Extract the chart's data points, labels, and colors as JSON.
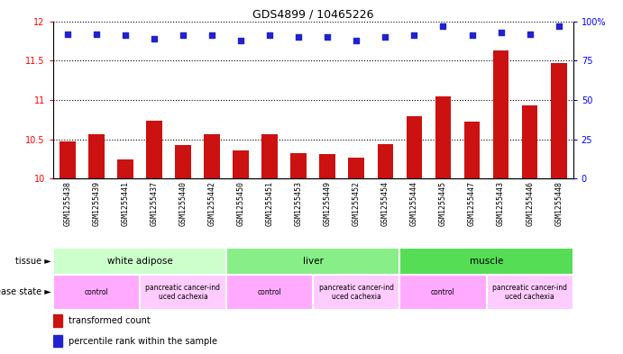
{
  "title": "GDS4899 / 10465226",
  "samples": [
    "GSM1255438",
    "GSM1255439",
    "GSM1255441",
    "GSM1255437",
    "GSM1255440",
    "GSM1255442",
    "GSM1255450",
    "GSM1255451",
    "GSM1255453",
    "GSM1255449",
    "GSM1255452",
    "GSM1255454",
    "GSM1255444",
    "GSM1255445",
    "GSM1255447",
    "GSM1255443",
    "GSM1255446",
    "GSM1255448"
  ],
  "transformed_count": [
    10.47,
    10.56,
    10.25,
    10.74,
    10.43,
    10.57,
    10.36,
    10.56,
    10.33,
    10.31,
    10.27,
    10.44,
    10.8,
    11.05,
    10.73,
    11.63,
    10.93,
    11.47
  ],
  "percentile_rank": [
    92,
    92,
    91,
    89,
    91,
    91,
    88,
    91,
    90,
    90,
    88,
    90,
    91,
    97,
    91,
    93,
    92,
    97
  ],
  "ylim_left": [
    10,
    12
  ],
  "yticks_left": [
    10,
    10.5,
    11,
    11.5,
    12
  ],
  "ylim_right": [
    0,
    100
  ],
  "yticks_right": [
    0,
    25,
    50,
    75,
    100
  ],
  "bar_color": "#cc1111",
  "dot_color": "#2222cc",
  "tissue_groups": [
    {
      "label": "white adipose",
      "start": 0,
      "end": 6,
      "color": "#ccffcc"
    },
    {
      "label": "liver",
      "start": 6,
      "end": 12,
      "color": "#88ee88"
    },
    {
      "label": "muscle",
      "start": 12,
      "end": 18,
      "color": "#55dd55"
    }
  ],
  "disease_groups": [
    {
      "label": "control",
      "start": 0,
      "end": 3,
      "color": "#ffaaff"
    },
    {
      "label": "pancreatic cancer-ind\nuced cachexia",
      "start": 3,
      "end": 6,
      "color": "#ffccff"
    },
    {
      "label": "control",
      "start": 6,
      "end": 9,
      "color": "#ffaaff"
    },
    {
      "label": "pancreatic cancer-ind\nuced cachexia",
      "start": 9,
      "end": 12,
      "color": "#ffccff"
    },
    {
      "label": "control",
      "start": 12,
      "end": 15,
      "color": "#ffaaff"
    },
    {
      "label": "pancreatic cancer-ind\nuced cachexia",
      "start": 15,
      "end": 18,
      "color": "#ffccff"
    }
  ],
  "xticklabel_bg": "#d0d0d0",
  "fig_bg": "#ffffff",
  "title_fontsize": 9,
  "axis_fontsize": 7,
  "bar_width": 0.55
}
